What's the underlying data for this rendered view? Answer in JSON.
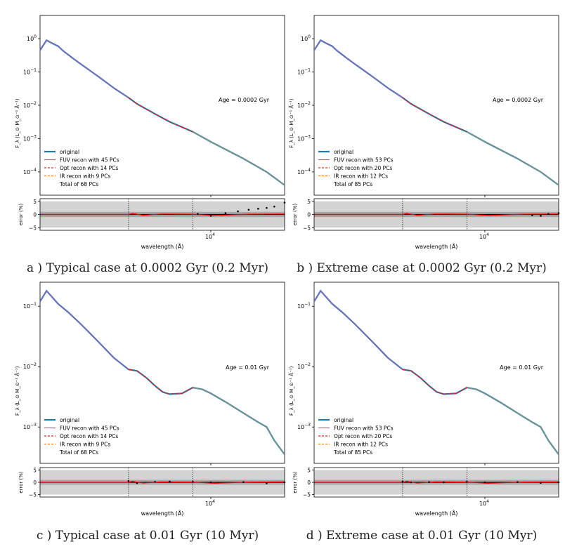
{
  "captions": [
    "a ) Typical case at 0.0002 Gyr (0.2 Myr)",
    "b ) Extreme case at 0.0002 Gyr (0.2 Myr)",
    "c ) Typical case at 0.01 Gyr (10 Myr)",
    "d ) Extreme case at 0.01 Gyr (10 Myr)"
  ],
  "colors": {
    "original": "#1f77b4",
    "fuv": "#9467bd",
    "opt": "#d62728",
    "ir": "#ff7f0e",
    "error_line": "#ff0000",
    "error_points": "#000000",
    "band_dark": "#a9a9a9",
    "band_light": "#d3d3d3"
  },
  "chart_data": [
    {
      "type": "line",
      "panel": "a",
      "ylabel": "F_λ (L_⊙ M_⊙⁻¹ Å⁻¹)",
      "xlabel": "wavelength (Å)",
      "yscale": "log",
      "xscale": "log",
      "xlim": [
        1200,
        25000
      ],
      "ylim": [
        2e-05,
        5
      ],
      "yticks": [
        "10^0",
        "10^-1",
        "10^-2",
        "10^-3",
        "10^-4"
      ],
      "xticks": [
        "10^4"
      ],
      "annotation": "Age = 0.0002 Gyr",
      "legend": {
        "placement": "lower-left",
        "entries": [
          "original",
          "FUV recon with 45 PCs",
          "Opt recon with 14 PCs",
          "IR recon with 9 PCs",
          "Total of 68 PCs"
        ]
      },
      "boundaries": [
        3600,
        8000
      ],
      "x": [
        1200,
        1300,
        1400,
        1500,
        1600,
        1800,
        2000,
        2500,
        3000,
        3600,
        4000,
        5000,
        6000,
        8000,
        10000,
        15000,
        20000,
        25000
      ],
      "y": [
        0.45,
        0.9,
        0.72,
        0.6,
        0.43,
        0.26,
        0.17,
        0.07,
        0.033,
        0.017,
        0.011,
        0.0055,
        0.0032,
        0.0016,
        0.0008,
        0.00025,
        0.0001,
        4e-05
      ],
      "error": {
        "ylabel": "error (%)",
        "ylim": [
          -6,
          6
        ],
        "yticks": [
          5,
          0,
          -5
        ],
        "x": [
          8500,
          10000,
          12000,
          14000,
          16000,
          18000,
          20000,
          22000,
          25000
        ],
        "y": [
          0.2,
          -0.5,
          0.5,
          1.2,
          1.8,
          2.2,
          2.5,
          3.0,
          4.5
        ]
      }
    },
    {
      "type": "line",
      "panel": "b",
      "ylabel": "F_λ (L_⊙ M_⊙⁻¹ Å⁻¹)",
      "xlabel": "wavelength (Å)",
      "yscale": "log",
      "xscale": "log",
      "xlim": [
        1200,
        25000
      ],
      "ylim": [
        2e-05,
        5
      ],
      "yticks": [
        "10^0",
        "10^-1",
        "10^-2",
        "10^-3",
        "10^-4"
      ],
      "xticks": [
        "10^4"
      ],
      "annotation": "Age = 0.0002 Gyr",
      "legend": {
        "placement": "lower-left",
        "entries": [
          "original",
          "FUV recon with 53 PCs",
          "Opt recon with 20 PCs",
          "IR recon with 12 PCs",
          "Total of 85 PCs"
        ]
      },
      "boundaries": [
        3600,
        8000
      ],
      "x": [
        1200,
        1300,
        1400,
        1500,
        1600,
        1800,
        2000,
        2500,
        3000,
        3600,
        4000,
        5000,
        6000,
        8000,
        10000,
        15000,
        20000,
        25000
      ],
      "y": [
        0.45,
        0.9,
        0.72,
        0.6,
        0.43,
        0.26,
        0.17,
        0.07,
        0.033,
        0.017,
        0.011,
        0.0055,
        0.0032,
        0.0016,
        0.0008,
        0.00025,
        0.0001,
        4e-05
      ],
      "error": {
        "ylabel": "error (%)",
        "ylim": [
          -6,
          6
        ],
        "yticks": [
          5,
          0,
          -5
        ],
        "x": [
          18000,
          20000,
          22000,
          25000
        ],
        "y": [
          -0.3,
          -0.5,
          0.2,
          0.5
        ]
      }
    },
    {
      "type": "line",
      "panel": "c",
      "ylabel": "F_λ (L_⊙ M_⊙⁻¹ Å⁻¹)",
      "xlabel": "wavelength (Å)",
      "yscale": "log",
      "xscale": "log",
      "xlim": [
        1200,
        25000
      ],
      "ylim": [
        0.00025,
        0.25
      ],
      "yticks": [
        "10^-1",
        "10^-2",
        "10^-3"
      ],
      "xticks": [
        "10^4"
      ],
      "annotation": "Age = 0.01 Gyr",
      "legend": {
        "placement": "lower-left",
        "entries": [
          "original",
          "FUV recon with 45 PCs",
          "Opt recon with 14 PCs",
          "IR recon with 9 PCs",
          "Total of 68 PCs"
        ]
      },
      "boundaries": [
        3600,
        8000
      ],
      "x": [
        1200,
        1300,
        1400,
        1500,
        1700,
        2000,
        2500,
        3000,
        3600,
        4000,
        4500,
        5000,
        5500,
        6000,
        7000,
        8000,
        9000,
        10000,
        12000,
        15000,
        18000,
        20000,
        22000,
        25000
      ],
      "y": [
        0.12,
        0.18,
        0.14,
        0.11,
        0.08,
        0.05,
        0.025,
        0.014,
        0.009,
        0.0085,
        0.0065,
        0.0048,
        0.0038,
        0.0035,
        0.0036,
        0.0045,
        0.0042,
        0.0036,
        0.0026,
        0.0017,
        0.0012,
        0.001,
        0.0006,
        0.00035
      ],
      "error": {
        "ylabel": "error (%)",
        "ylim": [
          -6,
          6
        ],
        "yticks": [
          5,
          0,
          -5
        ],
        "x": [
          3600,
          4000,
          5000,
          6000,
          8000,
          10000,
          15000,
          20000,
          25000
        ],
        "y": [
          0.5,
          -0.3,
          0.2,
          0.3,
          0.2,
          0.0,
          0.1,
          -0.4,
          0.0
        ]
      }
    },
    {
      "type": "line",
      "panel": "d",
      "ylabel": "F_λ (L_⊙ M_⊙⁻¹ Å⁻¹)",
      "xlabel": "wavelength (Å)",
      "yscale": "log",
      "xscale": "log",
      "xlim": [
        1200,
        25000
      ],
      "ylim": [
        0.00025,
        0.25
      ],
      "yticks": [
        "10^-1",
        "10^-2",
        "10^-3"
      ],
      "xticks": [
        "10^4"
      ],
      "annotation": "Age = 0.01 Gyr",
      "legend": {
        "placement": "lower-left",
        "entries": [
          "original",
          "FUV recon with 53 PCs",
          "Opt recon with 20 PCs",
          "IR recon with 12 PCs",
          "Total of 85 PCs"
        ]
      },
      "boundaries": [
        3600,
        8000
      ],
      "x": [
        1200,
        1300,
        1400,
        1500,
        1700,
        2000,
        2500,
        3000,
        3600,
        4000,
        4500,
        5000,
        5500,
        6000,
        7000,
        8000,
        9000,
        10000,
        12000,
        15000,
        18000,
        20000,
        22000,
        25000
      ],
      "y": [
        0.12,
        0.18,
        0.14,
        0.11,
        0.08,
        0.05,
        0.025,
        0.014,
        0.009,
        0.0085,
        0.0065,
        0.0048,
        0.0038,
        0.0035,
        0.0036,
        0.0045,
        0.0042,
        0.0036,
        0.0026,
        0.0017,
        0.0012,
        0.001,
        0.0006,
        0.00035
      ],
      "error": {
        "ylabel": "error (%)",
        "ylim": [
          -6,
          6
        ],
        "yticks": [
          5,
          0,
          -5
        ],
        "x": [
          3600,
          4000,
          5000,
          6000,
          8000,
          10000,
          15000,
          20000,
          25000
        ],
        "y": [
          0.2,
          0.0,
          0.1,
          0.0,
          0.2,
          0.0,
          0.1,
          -0.2,
          0.0
        ]
      }
    }
  ]
}
